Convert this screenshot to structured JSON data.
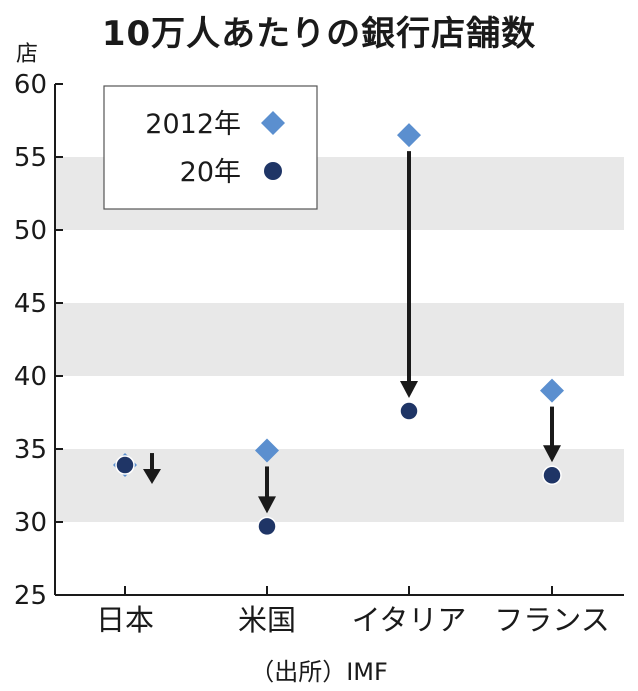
{
  "chart_data": {
    "type": "scatter",
    "title": "10万人あたりの銀行店舗数",
    "y_unit": "店",
    "source": "（出所）IMF",
    "categories": [
      "日本",
      "米国",
      "イタリア",
      "フランス"
    ],
    "ylim": [
      25,
      60
    ],
    "yticks": [
      25,
      30,
      35,
      40,
      45,
      50,
      55,
      60
    ],
    "grid_bands": true,
    "legend_position": "top-left",
    "series": [
      {
        "name": "2012年",
        "marker": "diamond",
        "color": "#5b8fcf",
        "values": [
          33.9,
          34.9,
          56.5,
          39.0
        ]
      },
      {
        "name": "20年",
        "marker": "circle",
        "color": "#1f3566",
        "values": [
          33.9,
          29.7,
          37.6,
          33.2
        ]
      }
    ]
  }
}
